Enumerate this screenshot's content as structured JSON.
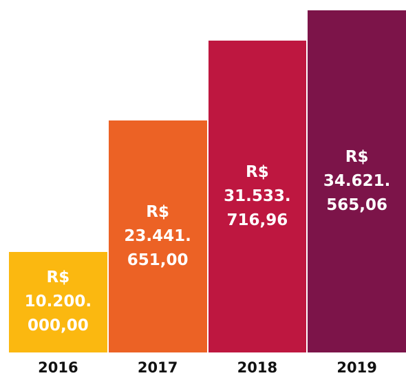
{
  "chart_data": {
    "type": "bar",
    "categories": [
      "2016",
      "2017",
      "2018",
      "2019"
    ],
    "values": [
      10200000,
      23441651,
      31533716.96,
      34621565.06
    ],
    "value_labels": [
      "R$\n10.200.\n000,00",
      "R$\n23.441.\n651,00",
      "R$\n31.533.\n716,96",
      "R$\n34.621.\n565,06"
    ],
    "colors": [
      "#fbb810",
      "#ec6225",
      "#be1740",
      "#7c1449"
    ]
  }
}
